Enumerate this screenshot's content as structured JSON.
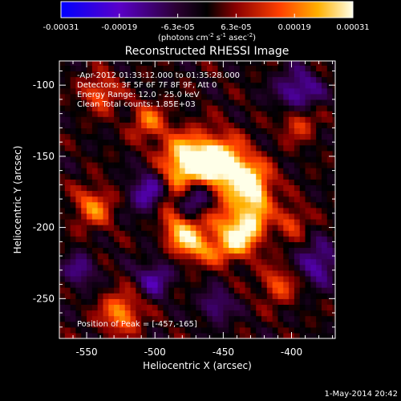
{
  "chart_data": {
    "type": "heatmap",
    "title": "Reconstructed RHESSI Image",
    "xlabel": "Heliocentric X (arcsec)",
    "ylabel": "Heliocentric Y (arcsec)",
    "xlim": [
      -570,
      -368
    ],
    "ylim": [
      -278,
      -83
    ],
    "x_ticks": [
      -550,
      -500,
      -450,
      -400
    ],
    "y_ticks": [
      -250,
      -200,
      -150,
      -100
    ],
    "colorbar": {
      "unit_label": "(photons cm",
      "unit_exp1": "-2",
      "unit_mid": " s",
      "unit_exp2": "-1",
      "unit_tail": " asec",
      "unit_exp3": "-2",
      "unit_close": ")",
      "range": [
        -0.00031,
        0.00031
      ],
      "tick_labels": [
        "-0.00031",
        "-0.00019",
        "-6.3e-05",
        "6.3e-05",
        "0.00019",
        "0.00031"
      ]
    },
    "info_lines": [
      "-Apr-2012 01:33:12.000 to 01:35:28.000",
      "Detectors: 3F 5F 6F 7F 8F 9F, Att 0",
      "Energy Range: 12.0 - 25.0 keV",
      "Clean     Total counts: 1.85E+03"
    ],
    "peak_label": "Position of Peak = [-457,-165]",
    "peak_position": [
      -457,
      -165
    ],
    "image_sources": [
      {
        "x": -455,
        "y": -155,
        "sigma": 14,
        "amp": 1.0
      },
      {
        "x": -480,
        "y": -150,
        "sigma": 12,
        "amp": 0.75
      },
      {
        "x": -430,
        "y": -170,
        "sigma": 12,
        "amp": 0.7
      },
      {
        "x": -440,
        "y": -200,
        "sigma": 13,
        "amp": 0.8
      },
      {
        "x": -475,
        "y": -205,
        "sigma": 11,
        "amp": 0.6
      },
      {
        "x": -525,
        "y": -260,
        "sigma": 10,
        "amp": 0.7
      },
      {
        "x": -545,
        "y": -185,
        "sigma": 10,
        "amp": 0.6
      },
      {
        "x": -540,
        "y": -105,
        "sigma": 9,
        "amp": 0.55
      },
      {
        "x": -505,
        "y": -125,
        "sigma": 9,
        "amp": 0.55
      },
      {
        "x": -395,
        "y": -125,
        "sigma": 9,
        "amp": 0.5
      },
      {
        "x": -410,
        "y": -240,
        "sigma": 9,
        "amp": 0.5
      },
      {
        "x": -400,
        "y": -195,
        "sigma": 8,
        "amp": 0.45
      },
      {
        "x": -470,
        "y": -180,
        "sigma": 9,
        "amp": -0.6
      },
      {
        "x": -505,
        "y": -175,
        "sigma": 10,
        "amp": -0.55
      },
      {
        "x": -395,
        "y": -105,
        "sigma": 11,
        "amp": -0.6
      },
      {
        "x": -380,
        "y": -225,
        "sigma": 10,
        "amp": -0.55
      },
      {
        "x": -500,
        "y": -235,
        "sigma": 9,
        "amp": -0.5
      },
      {
        "x": -455,
        "y": -255,
        "sigma": 8,
        "amp": -0.45
      },
      {
        "x": -555,
        "y": -230,
        "sigma": 8,
        "amp": -0.45
      }
    ]
  },
  "timestamp": "1-May-2014 20:42"
}
